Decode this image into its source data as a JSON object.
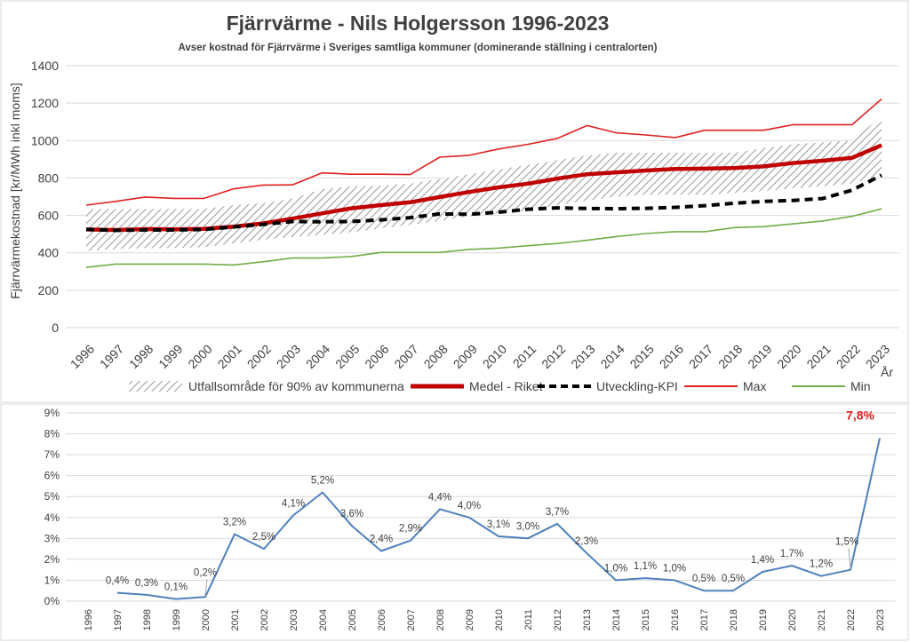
{
  "chart_data": [
    {
      "type": "line",
      "title": "Fjärrvärme - Nils Holgersson 1996-2023",
      "subtitle": "Avser kostnad för Fjärrvärme i Sveriges samtliga kommuner (dominerande ställning i centralorten)",
      "ylabel": "Fjärrvärmekostnad [kr/MWh inkl moms]",
      "xlabel": "År",
      "ylim": [
        0,
        1400
      ],
      "yticks": [
        0,
        200,
        400,
        600,
        800,
        1000,
        1200,
        1400
      ],
      "x": [
        "1996",
        "1997",
        "1998",
        "1999",
        "2000",
        "2001",
        "2002",
        "2003",
        "2004",
        "2005",
        "2006",
        "2007",
        "2008",
        "2009",
        "2010",
        "2011",
        "2012",
        "2013",
        "2014",
        "2015",
        "2016",
        "2017",
        "2018",
        "2019",
        "2020",
        "2021",
        "2022",
        "2023"
      ],
      "band": {
        "name": "Utfallsområde för 90% av kommunerna",
        "upper": [
          635,
          635,
          635,
          635,
          635,
          655,
          665,
          690,
          740,
          755,
          760,
          770,
          795,
          820,
          845,
          870,
          895,
          920,
          935,
          935,
          935,
          935,
          935,
          960,
          980,
          990,
          1000,
          1130
        ],
        "lower": [
          410,
          420,
          425,
          425,
          430,
          450,
          470,
          485,
          495,
          510,
          530,
          550,
          570,
          595,
          610,
          625,
          655,
          680,
          700,
          710,
          710,
          710,
          720,
          730,
          745,
          755,
          770,
          820
        ]
      },
      "series": [
        {
          "name": "Medel - Riket",
          "color": "#c00000",
          "values": [
            525,
            522,
            527,
            526,
            528,
            540,
            557,
            583,
            611,
            638,
            655,
            670,
            698,
            725,
            750,
            770,
            797,
            820,
            830,
            840,
            848,
            850,
            853,
            862,
            880,
            892,
            908,
            975
          ]
        },
        {
          "name": "Utveckling-KPI",
          "color": "#000000",
          "values": [
            525,
            520,
            522,
            522,
            525,
            538,
            552,
            567,
            566,
            567,
            576,
            588,
            608,
            606,
            617,
            633,
            640,
            637,
            636,
            638,
            643,
            652,
            665,
            675,
            680,
            690,
            735,
            815
          ]
        },
        {
          "name": "Max",
          "color": "#e02020",
          "values": [
            655,
            675,
            698,
            691,
            691,
            742,
            762,
            763,
            827,
            820,
            820,
            818,
            911,
            921,
            955,
            980,
            1012,
            1080,
            1041,
            1030,
            1016,
            1055,
            1055,
            1055,
            1085,
            1085,
            1085,
            1222
          ]
        },
        {
          "name": "Min",
          "color": "#70ad47",
          "values": [
            322,
            340,
            340,
            340,
            340,
            335,
            352,
            372,
            372,
            380,
            402,
            402,
            402,
            418,
            425,
            438,
            450,
            467,
            487,
            503,
            513,
            513,
            535,
            540,
            555,
            570,
            595,
            635
          ]
        }
      ]
    },
    {
      "type": "line",
      "x": [
        "1996",
        "1997",
        "1998",
        "1999",
        "2000",
        "2001",
        "2002",
        "2003",
        "2004",
        "2005",
        "2006",
        "2007",
        "2008",
        "2009",
        "2010",
        "2011",
        "2012",
        "2013",
        "2014",
        "2015",
        "2016",
        "2017",
        "2018",
        "2019",
        "2020",
        "2021",
        "2022",
        "2023"
      ],
      "ylim": [
        0,
        9
      ],
      "yticks": [
        "0%",
        "1%",
        "2%",
        "3%",
        "4%",
        "5%",
        "6%",
        "7%",
        "8%",
        "9%"
      ],
      "color": "#4f81bd",
      "values": [
        null,
        0.4,
        0.3,
        0.1,
        0.2,
        3.2,
        2.5,
        4.1,
        5.2,
        3.6,
        2.4,
        2.9,
        4.4,
        4.0,
        3.1,
        3.0,
        3.7,
        2.3,
        1.0,
        1.1,
        1.0,
        0.5,
        0.5,
        1.4,
        1.7,
        1.2,
        1.5,
        7.8
      ],
      "labels": [
        null,
        "0,4%",
        "0,3%",
        "0,1%",
        "0,2%",
        "3,2%",
        "2,5%",
        "4,1%",
        "5,2%",
        "3,6%",
        "2,4%",
        "2,9%",
        "4,4%",
        "4,0%",
        "3,1%",
        "3,0%",
        "3,7%",
        "2,3%",
        "1,0%",
        "1,1%",
        "1,0%",
        "0,5%",
        "0,5%",
        "1,4%",
        "1,7%",
        "1,2%",
        "1,5%",
        "7,8%"
      ],
      "highlight_color": "#e02020"
    }
  ]
}
